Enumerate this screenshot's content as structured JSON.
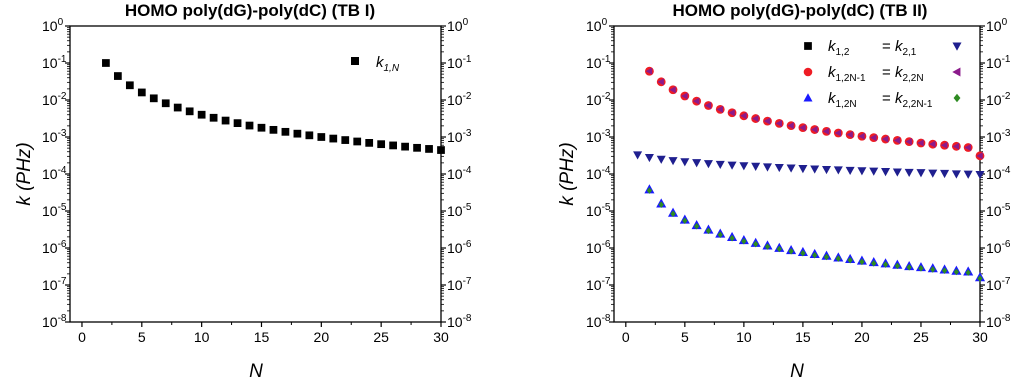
{
  "chart_data": [
    {
      "type": "scatter",
      "title": "HOMO poly(dG)-poly(dC) (TB I)",
      "xlabel": "N",
      "ylabel": "k (PHz)",
      "xlim": [
        -1,
        30
      ],
      "ylim_log10": [
        -8,
        0
      ],
      "yscale": "log",
      "xticks": [
        0,
        5,
        10,
        15,
        20,
        25,
        30
      ],
      "xtick_labels": [
        "0",
        "5",
        "10",
        "15",
        "20",
        "25",
        "30"
      ],
      "yticks_exp": [
        0,
        -1,
        -2,
        -3,
        -4,
        -5,
        -6,
        -7,
        -8
      ],
      "ytick_base": "10",
      "ytick_exp_labels": [
        "0",
        "-1",
        "-2",
        "-3",
        "-4",
        "-5",
        "-6",
        "-7",
        "-8"
      ],
      "legend_position": "top-right",
      "series": [
        {
          "label_main": "k",
          "label_sub": "1,N",
          "marker": "square",
          "color": "#000000",
          "x": [
            2,
            3,
            4,
            5,
            6,
            7,
            8,
            9,
            10,
            11,
            12,
            13,
            14,
            15,
            16,
            17,
            18,
            19,
            20,
            21,
            22,
            23,
            24,
            25,
            26,
            27,
            28,
            29,
            30
          ],
          "y": [
            0.1,
            0.0444,
            0.025,
            0.016,
            0.0111,
            0.00816,
            0.00625,
            0.00494,
            0.004,
            0.00331,
            0.00278,
            0.00237,
            0.00204,
            0.00178,
            0.00156,
            0.00138,
            0.00123,
            0.00111,
            0.001,
            0.000907,
            0.000826,
            0.000756,
            0.000694,
            0.00064,
            0.000592,
            0.000549,
            0.00051,
            0.000476,
            0.000444
          ]
        }
      ]
    },
    {
      "type": "scatter",
      "title": "HOMO poly(dG)-poly(dC) (TB II)",
      "xlabel": "N",
      "ylabel": "k (PHz)",
      "xlim": [
        -1,
        30
      ],
      "ylim_log10": [
        -8,
        0
      ],
      "yscale": "log",
      "xticks": [
        0,
        5,
        10,
        15,
        20,
        25,
        30
      ],
      "xtick_labels": [
        "0",
        "5",
        "10",
        "15",
        "20",
        "25",
        "30"
      ],
      "yticks_exp": [
        0,
        -1,
        -2,
        -3,
        -4,
        -5,
        -6,
        -7,
        -8
      ],
      "ytick_base": "10",
      "ytick_exp_labels": [
        "0",
        "-1",
        "-2",
        "-3",
        "-4",
        "-5",
        "-6",
        "-7",
        "-8"
      ],
      "legend_position": "top-right",
      "legend_rows": [
        {
          "left_marker": "square",
          "left_color": "#000000",
          "a_main": "k",
          "a_sub": "1,2",
          "b_main": "k",
          "b_sub": "2,1",
          "eq": "=",
          "right_marker": "tri-down",
          "right_color": "#1f1f8f"
        },
        {
          "left_marker": "circle",
          "left_color": "#ee1c24",
          "a_main": "k",
          "a_sub": "1,2N-1",
          "b_main": "k",
          "b_sub": "2,2N",
          "eq": "=",
          "right_marker": "tri-left",
          "right_color": "#8b1a8b"
        },
        {
          "left_marker": "tri-up",
          "left_color": "#1a1aff",
          "a_main": "k",
          "a_sub": "1,2N",
          "b_main": "k",
          "b_sub": "2,2N-1",
          "eq": "=",
          "right_marker": "diamond",
          "right_color": "#2e8b22"
        }
      ],
      "series": [
        {
          "label": "k1,2 = k2,1",
          "marker": "tri-down",
          "color": "#1f1f8f",
          "x": [
            1,
            2,
            3,
            4,
            5,
            6,
            7,
            8,
            9,
            10,
            11,
            12,
            13,
            14,
            15,
            16,
            17,
            18,
            19,
            20,
            21,
            22,
            23,
            24,
            25,
            26,
            27,
            28,
            29,
            30
          ],
          "y": [
            0.00033,
            0.00028,
            0.000252,
            0.000231,
            0.000215,
            0.000203,
            0.000192,
            0.000183,
            0.000175,
            0.000168,
            0.000162,
            0.000156,
            0.000151,
            0.000146,
            0.000141,
            0.000137,
            0.000133,
            0.00013,
            0.000126,
            0.000123,
            0.00012,
            0.000117,
            0.000114,
            0.000111,
            0.000109,
            0.000106,
            0.000104,
            0.000101,
            9.93e-05,
            9.72e-05
          ]
        },
        {
          "label": "k1,2N-1 = k2,2N",
          "marker": "circle-tri-left",
          "color": "#ee1c24",
          "x": [
            2,
            3,
            4,
            5,
            6,
            7,
            8,
            9,
            10,
            11,
            12,
            13,
            14,
            15,
            16,
            17,
            18,
            19,
            20,
            21,
            22,
            23,
            24,
            25,
            26,
            27,
            28,
            29,
            30
          ],
          "y": [
            0.06,
            0.031,
            0.0189,
            0.0128,
            0.0093,
            0.0071,
            0.00558,
            0.00452,
            0.00374,
            0.00315,
            0.00269,
            0.00233,
            0.00203,
            0.00179,
            0.00159,
            0.00142,
            0.00128,
            0.00116,
            0.00105,
            0.00096,
            0.00088,
            0.00081,
            0.00075,
            0.00069,
            0.00064,
            0.0006,
            0.00056,
            0.00052,
            0.00031
          ]
        },
        {
          "label": "k1,2N = k2,2N-1",
          "marker": "tri-up-diamond",
          "color": "#1a1aff",
          "x": [
            2,
            3,
            4,
            5,
            6,
            7,
            8,
            9,
            10,
            11,
            12,
            13,
            14,
            15,
            16,
            17,
            18,
            19,
            20,
            21,
            22,
            23,
            24,
            25,
            26,
            27,
            28,
            29,
            30
          ],
          "y": [
            3.8e-05,
            1.58e-05,
            8.91e-06,
            5.8e-06,
            4.12e-06,
            3.1e-06,
            2.43e-06,
            1.96e-06,
            1.62e-06,
            1.36e-06,
            1.16e-06,
            1e-06,
            8.7e-07,
            7.7e-07,
            6.8e-07,
            6.1e-07,
            5.5e-07,
            5e-07,
            4.5e-07,
            4.1e-07,
            3.8e-07,
            3.5e-07,
            3.2e-07,
            3e-07,
            2.8e-07,
            2.6e-07,
            2.4e-07,
            2.3e-07,
            1.6e-07
          ]
        }
      ]
    }
  ]
}
